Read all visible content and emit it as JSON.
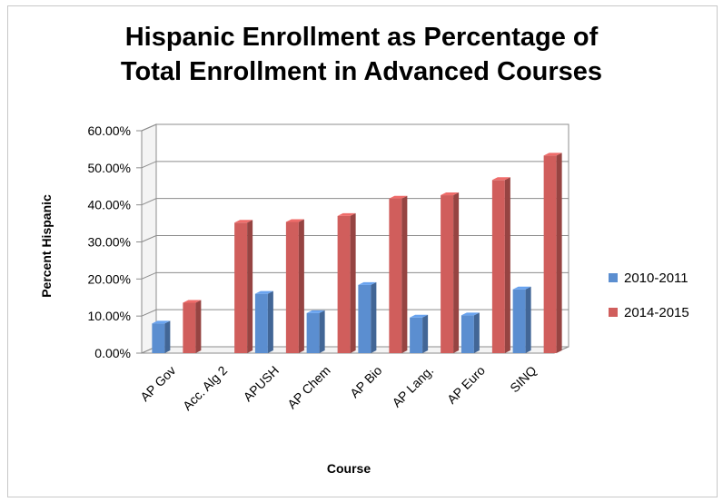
{
  "chart_data": {
    "type": "bar",
    "title_lines": [
      "Hispanic Enrollment as Percentage of",
      "Total Enrollment in Advanced Courses"
    ],
    "xlabel": "Course",
    "ylabel": "Percent Hispanic",
    "categories": [
      "AP Gov",
      "Acc. Alg 2",
      "APUSH",
      "AP Chem",
      "AP Bio",
      "AP Lang.",
      "AP Euro",
      "SINQ"
    ],
    "y_ticks": [
      "0.00%",
      "10.00%",
      "20.00%",
      "30.00%",
      "40.00%",
      "50.00%",
      "60.00%"
    ],
    "ylim": [
      0,
      60
    ],
    "grid": true,
    "legend_position": "right",
    "series": [
      {
        "name": "2010-2011",
        "color": "#5B8ED0",
        "values": [
          8.0,
          0,
          16.0,
          10.8,
          18.4,
          9.6,
          10.2,
          17.2
        ]
      },
      {
        "name": "2014-2015",
        "color": "#D05E5C",
        "values": [
          13.6,
          35.2,
          35.4,
          37.0,
          41.7,
          42.6,
          46.7,
          53.3
        ]
      }
    ]
  }
}
